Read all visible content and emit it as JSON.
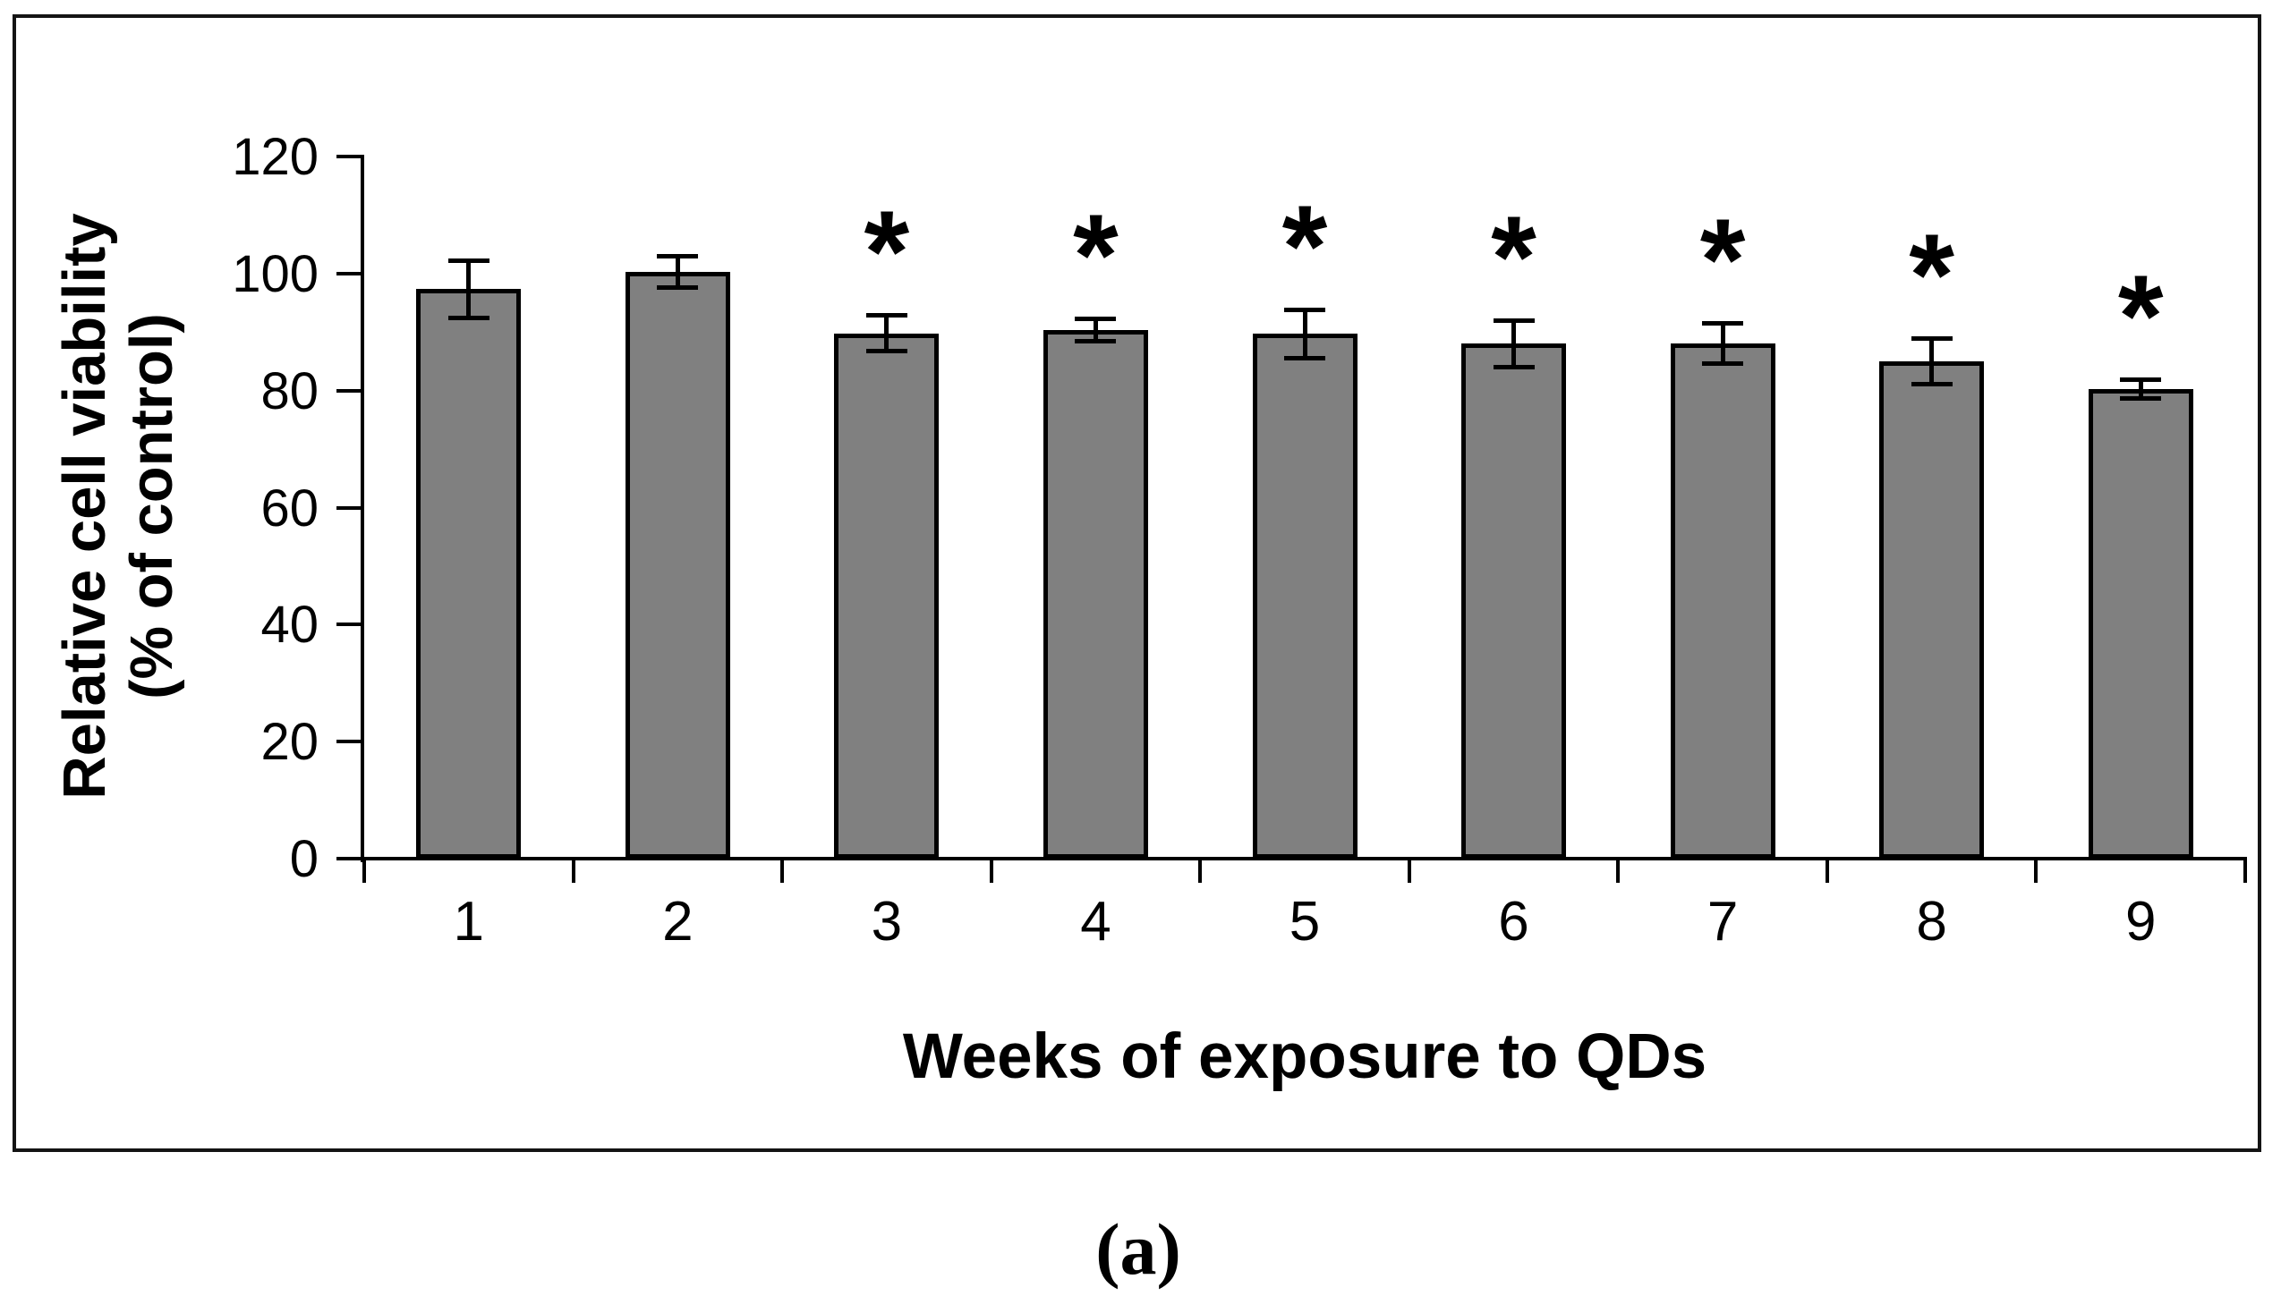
{
  "figure": {
    "caption": "(a)"
  },
  "chart_data": {
    "type": "bar",
    "title": "",
    "xlabel": "Weeks of exposure to QDs",
    "ylabel_line1": "Relative cell viability",
    "ylabel_line2": "(% of control)",
    "categories": [
      "1",
      "2",
      "3",
      "4",
      "5",
      "6",
      "7",
      "8",
      "9"
    ],
    "values": [
      97.3,
      100.3,
      89.8,
      90.3,
      89.7,
      88.0,
      88.0,
      85.0,
      80.2
    ],
    "errors": [
      5.0,
      2.8,
      3.1,
      2.0,
      4.2,
      4.0,
      3.5,
      4.0,
      1.7
    ],
    "significance": [
      false,
      false,
      true,
      true,
      true,
      true,
      true,
      true,
      true
    ],
    "significance_marker": "*",
    "y_ticks": [
      0,
      20,
      40,
      60,
      80,
      100,
      120
    ],
    "ylim": [
      0,
      120
    ],
    "grid": false,
    "legend": null,
    "bar_color": "#808080",
    "bar_border_color": "#000000",
    "axis_color": "#000000",
    "x_ticks_at_category_boundaries": true
  }
}
